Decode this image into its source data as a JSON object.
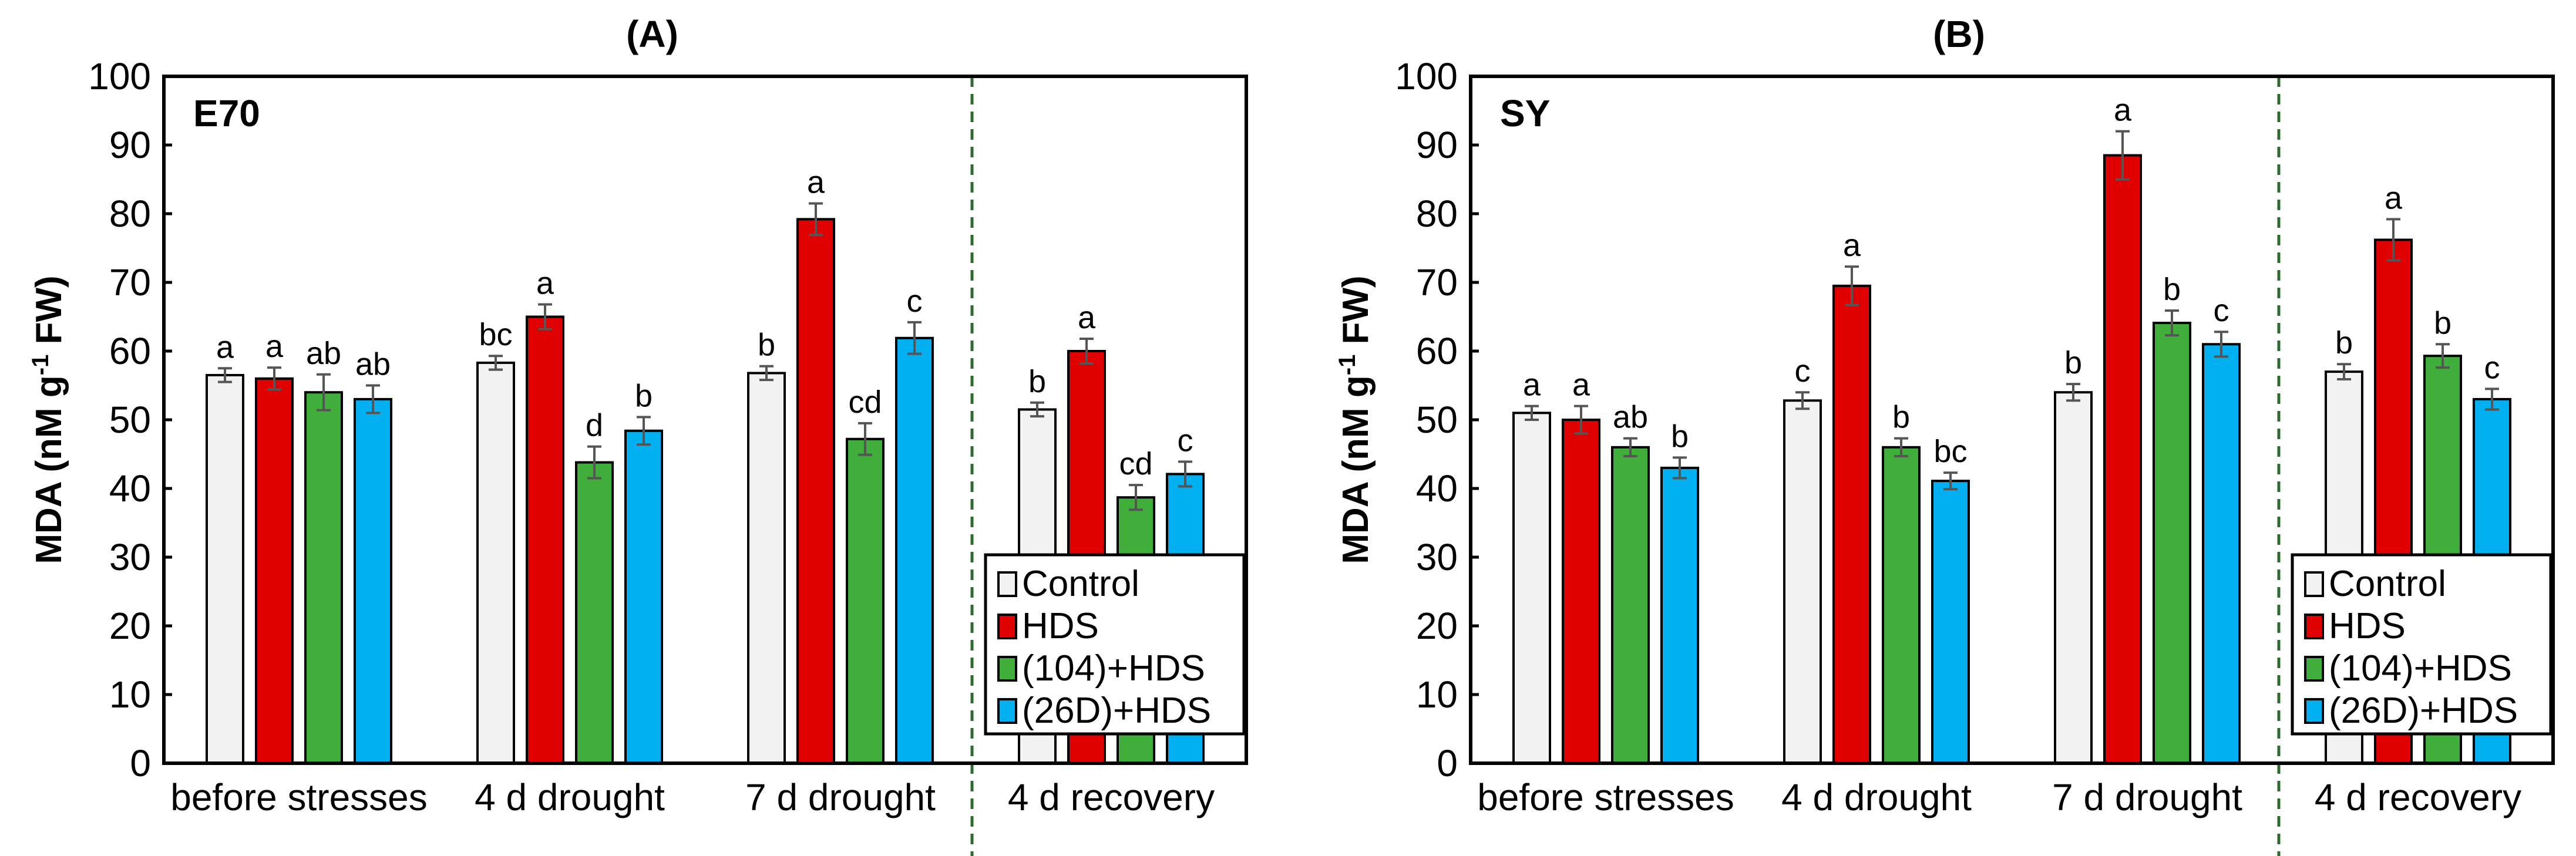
{
  "colors": {
    "Control": "#f2f2f2",
    "HDS": "#e00000",
    "(104)+HDS": "#3fae3a",
    "(26D)+HDS": "#00b0f0",
    "divider": "#2e6b2e"
  },
  "chart_data": [
    {
      "type": "bar",
      "title": "(A)",
      "annotation": "E70",
      "ylabel": "MDA (nM g-1 FW)",
      "ylabel_parts": {
        "main": "MDA (nM g",
        "sup": "-1",
        "tail": " FW)"
      },
      "ylim": [
        0,
        100
      ],
      "yticks": [
        0,
        10,
        20,
        30,
        40,
        50,
        60,
        70,
        80,
        90,
        100
      ],
      "categories": [
        "before stresses",
        "4 d drought",
        "7 d drought",
        "4 d recovery"
      ],
      "legend": {
        "position": "bottom-right",
        "entries": [
          "Control",
          "HDS",
          "(104)+HDS",
          "(26D)+HDS"
        ]
      },
      "series": [
        {
          "name": "Control",
          "values": [
            56.5,
            58.3,
            56.8,
            51.5
          ],
          "errors": [
            1,
            1,
            1,
            1
          ],
          "letters": [
            "a",
            "bc",
            "b",
            "b"
          ]
        },
        {
          "name": "HDS",
          "values": [
            56,
            65,
            79.2,
            60
          ],
          "errors": [
            1.6,
            1.8,
            2.3,
            1.8
          ],
          "letters": [
            "a",
            "a",
            "a",
            "a"
          ]
        },
        {
          "name": "(104)+HDS",
          "values": [
            54,
            43.8,
            47.2,
            38.7
          ],
          "errors": [
            2.6,
            2.3,
            2.3,
            1.8
          ],
          "letters": [
            "ab",
            "d",
            "cd",
            "cd"
          ]
        },
        {
          "name": "(26D)+HDS",
          "values": [
            53,
            48.4,
            61.9,
            42.1
          ],
          "errors": [
            2,
            2,
            2.3,
            1.8
          ],
          "letters": [
            "ab",
            "b",
            "c",
            "c"
          ]
        }
      ]
    },
    {
      "type": "bar",
      "title": "(B)",
      "annotation": "SY",
      "ylabel": "MDA (nM g-1 FW)",
      "ylabel_parts": {
        "main": "MDA (nM g",
        "sup": "-1",
        "tail": " FW)"
      },
      "ylim": [
        0,
        100
      ],
      "yticks": [
        0,
        10,
        20,
        30,
        40,
        50,
        60,
        70,
        80,
        90,
        100
      ],
      "categories": [
        "before stresses",
        "4 d drought",
        "7 d drought",
        "4 d recovery"
      ],
      "legend": {
        "position": "bottom-right",
        "entries": [
          "Control",
          "HDS",
          "(104)+HDS",
          "(26D)+HDS"
        ]
      },
      "series": [
        {
          "name": "Control",
          "values": [
            51,
            52.8,
            54,
            57
          ],
          "errors": [
            1,
            1.2,
            1.2,
            1.1
          ],
          "letters": [
            "a",
            "c",
            "b",
            "b"
          ]
        },
        {
          "name": "HDS",
          "values": [
            50,
            69.5,
            88.5,
            76.2
          ],
          "errors": [
            2,
            2.8,
            3.5,
            3
          ],
          "letters": [
            "a",
            "a",
            "a",
            "a"
          ]
        },
        {
          "name": "(104)+HDS",
          "values": [
            46,
            46,
            64.1,
            59.3
          ],
          "errors": [
            1.3,
            1.3,
            1.8,
            1.7
          ],
          "letters": [
            "ab",
            "b",
            "b",
            "b"
          ]
        },
        {
          "name": "(26D)+HDS",
          "values": [
            43,
            41.1,
            61,
            53
          ],
          "errors": [
            1.5,
            1.2,
            1.8,
            1.5
          ],
          "letters": [
            "b",
            "bc",
            "c",
            "c"
          ]
        }
      ]
    }
  ]
}
